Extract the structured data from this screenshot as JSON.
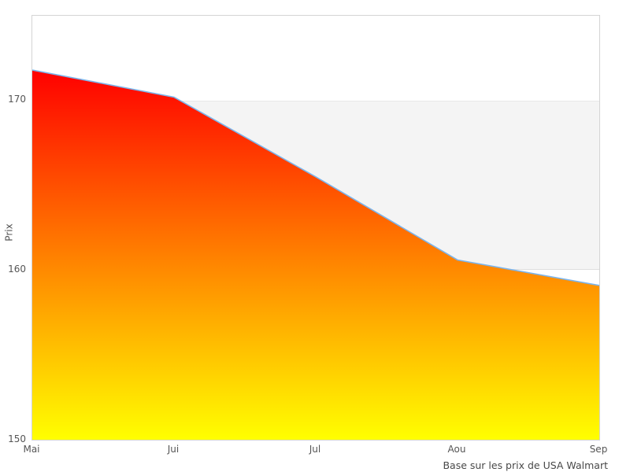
{
  "chart_data": {
    "type": "area",
    "title": "",
    "categories": [
      "Mai",
      "Jui",
      "Jul",
      "Aou",
      "Sep"
    ],
    "series": [
      {
        "name": "Prix",
        "values": [
          171.8,
          170.2,
          165.5,
          160.6,
          159.1
        ]
      }
    ],
    "xlabel": "",
    "ylabel": "Prix",
    "caption": "Base sur les prix de USA Walmart",
    "ylim": [
      150,
      175
    ],
    "yticks": [
      150,
      160,
      170
    ],
    "legend_position": "none",
    "grid": "alternating-horizontal-bands",
    "band": {
      "from": 160,
      "to": 170,
      "color": "#f4f4f4"
    },
    "colors": {
      "line": "#7cb5ec",
      "fill_top": "#ff0000",
      "fill_bottom": "#ffff00",
      "plot_border": "#d4d4d4",
      "tick_text": "#555555",
      "caption_text": "#484848",
      "background": "#ffffff"
    }
  }
}
